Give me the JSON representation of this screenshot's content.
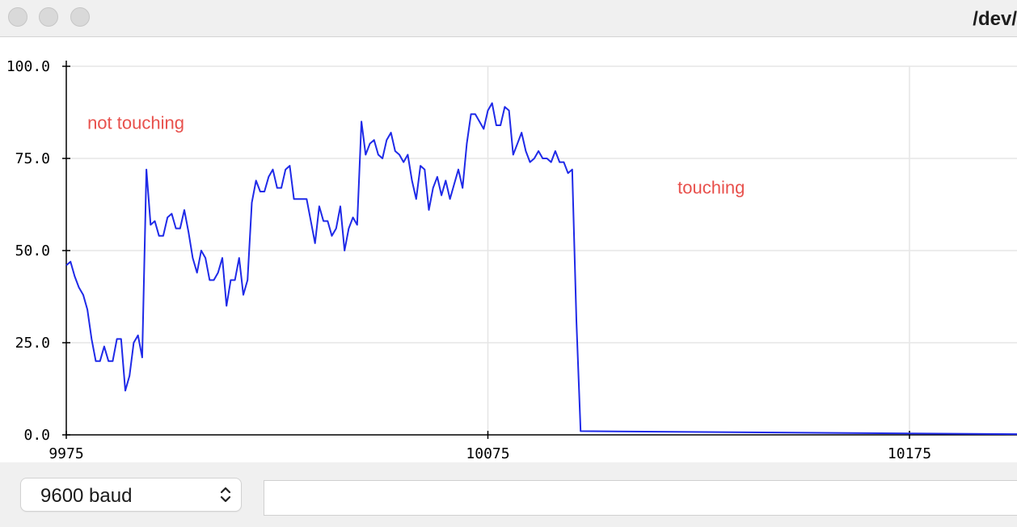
{
  "window": {
    "title": "/dev/"
  },
  "toolbar": {
    "baud_rate": "9600 baud",
    "message_input": ""
  },
  "colors": {
    "series": "#1f2ae8",
    "annotation": "#e8504c",
    "grid": "#e6e6e6"
  },
  "chart_data": {
    "type": "line",
    "ylim": [
      0,
      100
    ],
    "xlim": [
      9975,
      10225
    ],
    "y_ticks": [
      "0.0",
      "25.0",
      "50.0",
      "75.0",
      "100.0"
    ],
    "x_ticks": [
      "9975",
      "10075",
      "10175"
    ],
    "grid": true,
    "annotations": [
      {
        "text": "not touching",
        "x": 9980,
        "y": 83
      },
      {
        "text": "touching",
        "x": 10120,
        "y": 65.5
      }
    ],
    "series": [
      {
        "x": [
          9975,
          9976,
          9977,
          9978,
          9979,
          9980,
          9981,
          9982,
          9983,
          9984,
          9985,
          9986,
          9987,
          9988,
          9989,
          9990,
          9991,
          9992,
          9993,
          9994,
          9995,
          9996,
          9997,
          9998,
          9999,
          10000,
          10001,
          10002,
          10003,
          10004,
          10005,
          10006,
          10007,
          10008,
          10009,
          10010,
          10011,
          10012,
          10013,
          10014,
          10015,
          10016,
          10017,
          10018,
          10019,
          10020,
          10021,
          10022,
          10023,
          10024,
          10025,
          10026,
          10027,
          10028,
          10029,
          10030,
          10031,
          10032,
          10033,
          10034,
          10035,
          10036,
          10037,
          10038,
          10039,
          10040,
          10041,
          10042,
          10043,
          10044,
          10045,
          10046,
          10047,
          10048,
          10049,
          10050,
          10051,
          10052,
          10053,
          10054,
          10055,
          10056,
          10057,
          10058,
          10059,
          10060,
          10061,
          10062,
          10063,
          10064,
          10065,
          10066,
          10067,
          10068,
          10069,
          10070,
          10071,
          10072,
          10073,
          10074,
          10075,
          10076,
          10077,
          10078,
          10079,
          10080,
          10081,
          10082,
          10083,
          10084,
          10085,
          10086,
          10087,
          10088,
          10089,
          10090,
          10091,
          10092,
          10093,
          10094,
          10095,
          10096,
          10097,
          10225
        ],
        "y": [
          46,
          47,
          43,
          40,
          38,
          34,
          26,
          20,
          20,
          24,
          20,
          20,
          26,
          26,
          12,
          16,
          25,
          27,
          21,
          72,
          57,
          58,
          54,
          54,
          59,
          60,
          56,
          56,
          61,
          55,
          48,
          44,
          50,
          48,
          42,
          42,
          44,
          48,
          35,
          42,
          42,
          48,
          38,
          42,
          63,
          69,
          66,
          66,
          70,
          72,
          67,
          67,
          72,
          73,
          64,
          64,
          64,
          64,
          58,
          52,
          62,
          58,
          58,
          54,
          56,
          62,
          50,
          56,
          59,
          57,
          85,
          76,
          79,
          80,
          76,
          75,
          80,
          82,
          77,
          76,
          74,
          76,
          69,
          64,
          73,
          72,
          61,
          67,
          70,
          65,
          69,
          64,
          68,
          72,
          67,
          79,
          87,
          87,
          85,
          83,
          88,
          90,
          84,
          84,
          89,
          88,
          76,
          79,
          82,
          77,
          74,
          75,
          77,
          75,
          75,
          74,
          77,
          74,
          74,
          71,
          72,
          31,
          1,
          0
        ]
      }
    ]
  }
}
